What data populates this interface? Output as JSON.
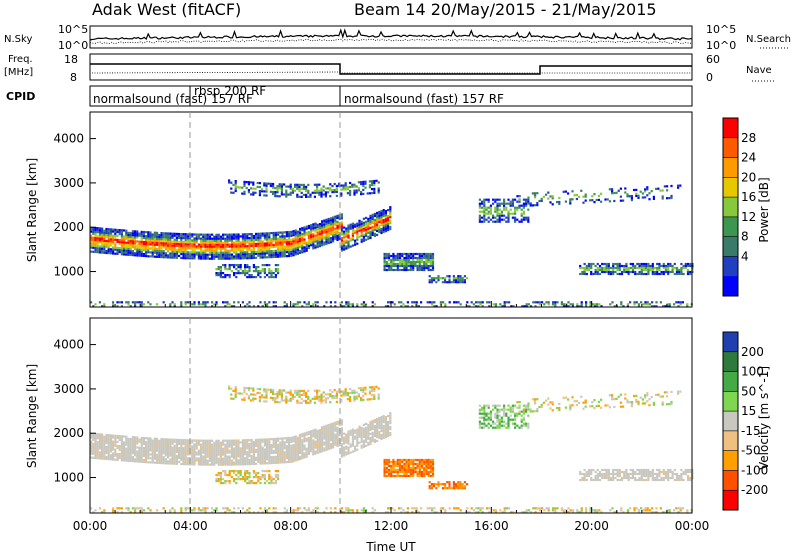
{
  "header": {
    "title": "Adak West (fitACF)",
    "beam_info": "Beam 14 20/May/2015 - 21/May/2015"
  },
  "panels": {
    "nsky": {
      "left_label": "N.Sky",
      "ticks_left": [
        "10^5",
        "10^0"
      ],
      "ticks_right": [
        "10^5",
        "10^0"
      ],
      "right_label": "N.Search"
    },
    "freq": {
      "left_label_1": "Freq.",
      "left_label_2": "[MHz]",
      "ticks_left": [
        "18",
        "8"
      ],
      "ticks_right": [
        "60",
        "0"
      ],
      "right_label": "Nave"
    },
    "cpid": {
      "label": "CPID",
      "segments": [
        {
          "label": "normalsound (fast) 157 RF",
          "start": 0,
          "end": 4
        },
        {
          "label": "rbsp 200 RF",
          "start": 4,
          "end": 10
        },
        {
          "label": "normalsound (fast) 157 RF",
          "start": 10,
          "end": 24
        }
      ]
    }
  },
  "chart_data": [
    {
      "type": "heatmap",
      "name": "power",
      "ylabel": "Slant Range [km]",
      "xlabel": "",
      "x_ticks": [
        "00:00",
        "04:00",
        "08:00",
        "12:00",
        "16:00",
        "20:00",
        "00:00"
      ],
      "y_ticks": [
        1000,
        2000,
        3000,
        4000
      ],
      "ylim": [
        200,
        4600
      ],
      "xlim": [
        0,
        24
      ],
      "colorbar": {
        "label": "Power [dB]",
        "ticks": [
          "28",
          "24",
          "20",
          "16",
          "12",
          "8",
          "4"
        ],
        "colors": [
          "#ff0000",
          "#ff5a00",
          "#ff9a00",
          "#e6c800",
          "#87c83c",
          "#3c9650",
          "#3a7a6a",
          "#2040c0",
          "#0000ff"
        ]
      }
    },
    {
      "type": "heatmap",
      "name": "velocity",
      "ylabel": "Slant Range [km]",
      "xlabel": "Time UT",
      "x_ticks": [
        "00:00",
        "04:00",
        "08:00",
        "12:00",
        "16:00",
        "20:00",
        "00:00"
      ],
      "y_ticks": [
        1000,
        2000,
        3000,
        4000
      ],
      "ylim": [
        200,
        4600
      ],
      "xlim": [
        0,
        24
      ],
      "colorbar": {
        "label": "Velocity [m s^-1]",
        "ticks": [
          "200",
          "100",
          "50",
          "15",
          "-15",
          "-50",
          "-100",
          "-200"
        ],
        "colors": [
          "#2040b0",
          "#2e7a3c",
          "#44aa44",
          "#7fd650",
          "#c8c8c0",
          "#f0c080",
          "#ffa000",
          "#ff5000",
          "#ff0000"
        ]
      }
    }
  ]
}
